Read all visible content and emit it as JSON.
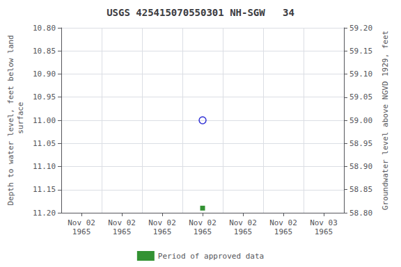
{
  "chart_data": {
    "type": "scatter",
    "title": "USGS 425415070550301 NH-SGW   34",
    "ylabel": "Depth to water level, feet below land\n surface",
    "y2label": "Groundwater level above NGVD 1929, feet",
    "categories": [
      "Nov 02\n1965",
      "Nov 02\n1965",
      "Nov 02\n1965",
      "Nov 02\n1965",
      "Nov 02\n1965",
      "Nov 02\n1965",
      "Nov 03\n1965"
    ],
    "series": [
      {
        "values": [
          null,
          null,
          null,
          11.0,
          null,
          null,
          null
        ],
        "color": "#0000cc",
        "marker": "circle-open"
      },
      {
        "name": "Period of approved data",
        "values": [
          null,
          null,
          null,
          11.19,
          null,
          null,
          null
        ],
        "color": "#007700",
        "marker": "square"
      }
    ],
    "ylim": [
      11.2,
      10.8
    ],
    "yticks": [
      {
        "value": 10.8,
        "label": "10.80"
      },
      {
        "value": 10.85,
        "label": "10.85"
      },
      {
        "value": 10.9,
        "label": "10.90"
      },
      {
        "value": 10.95,
        "label": "10.95"
      },
      {
        "value": 11.0,
        "label": "11.00"
      },
      {
        "value": 11.05,
        "label": "11.05"
      },
      {
        "value": 11.1,
        "label": "11.10"
      },
      {
        "value": 11.15,
        "label": "11.15"
      },
      {
        "value": 11.2,
        "label": "11.20"
      }
    ],
    "y2lim": [
      58.8,
      59.2
    ],
    "y2ticks": [
      {
        "value": 59.2,
        "label": "59.20"
      },
      {
        "value": 59.15,
        "label": "59.15"
      },
      {
        "value": 59.1,
        "label": "59.10"
      },
      {
        "value": 59.05,
        "label": "59.05"
      },
      {
        "value": 59.0,
        "label": "59.00"
      },
      {
        "value": 58.95,
        "label": "58.95"
      },
      {
        "value": 58.9,
        "label": "58.90"
      },
      {
        "value": 58.85,
        "label": "58.85"
      },
      {
        "value": 58.8,
        "label": "58.80"
      }
    ],
    "grid": true,
    "legend": "bottom"
  }
}
